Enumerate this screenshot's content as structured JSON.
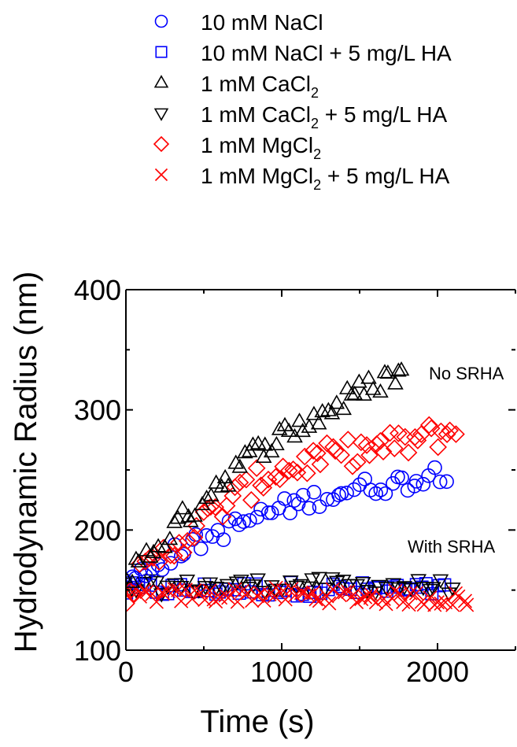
{
  "chart_data": {
    "type": "scatter",
    "title": "",
    "xlabel": "Time (s)",
    "ylabel": "Hydrodynamic Radius (nm)",
    "xlim": [
      0,
      2500
    ],
    "ylim": [
      100,
      400
    ],
    "xticks": [
      0,
      1000,
      2000
    ],
    "yticks": [
      100,
      200,
      300,
      400
    ],
    "grid": false,
    "legend_position": "top",
    "annotations": [
      "No SRHA",
      "With SRHA"
    ],
    "series": [
      {
        "name": "10 mM NaCl",
        "legend_main": "10 mM NaCl",
        "legend_sub": "",
        "legend_tail": "",
        "marker": "circle",
        "color": "#0000ff",
        "trend": {
          "x": [
            0,
            300,
            600,
            900,
            1200,
            1500,
            1800,
            2000
          ],
          "y": [
            155,
            180,
            198,
            214,
            226,
            235,
            240,
            248
          ]
        },
        "x_range": [
          0,
          2050
        ],
        "count": 60,
        "noise": 8
      },
      {
        "name": "10 mM NaCl + 5 mg/L HA",
        "legend_main": "10 mM NaCl + 5 mg/L HA",
        "legend_sub": "",
        "legend_tail": "",
        "marker": "square",
        "color": "#0000ff",
        "trend": {
          "x": [
            0,
            1000,
            2050
          ],
          "y": [
            150,
            151,
            150
          ]
        },
        "x_range": [
          0,
          2050
        ],
        "count": 55,
        "noise": 6
      },
      {
        "name": "1 mM CaCl2",
        "legend_main": "1 mM CaCl",
        "legend_sub": "2",
        "legend_tail": "",
        "marker": "triangle-up",
        "color": "#000000",
        "trend": {
          "x": [
            0,
            300,
            600,
            900,
            1200,
            1500,
            1700,
            1780
          ],
          "y": [
            160,
            200,
            240,
            272,
            292,
            315,
            328,
            332
          ]
        },
        "x_range": [
          0,
          1780
        ],
        "count": 60,
        "noise": 10
      },
      {
        "name": "1 mM CaCl2 + 5 mg/L HA",
        "legend_main": "1 mM CaCl",
        "legend_sub": "2",
        "legend_tail": " + 5 mg/L HA",
        "marker": "triangle-down",
        "color": "#000000",
        "trend": {
          "x": [
            0,
            1000,
            2100
          ],
          "y": [
            152,
            155,
            153
          ]
        },
        "x_range": [
          0,
          2100
        ],
        "count": 55,
        "noise": 6
      },
      {
        "name": "1 mM MgCl2",
        "legend_main": "1 mM MgCl",
        "legend_sub": "2",
        "legend_tail": "",
        "marker": "diamond",
        "color": "#ff0000",
        "trend": {
          "x": [
            0,
            300,
            600,
            900,
            1200,
            1500,
            1800,
            2100
          ],
          "y": [
            150,
            185,
            218,
            245,
            258,
            266,
            272,
            283
          ]
        },
        "x_range": [
          0,
          2120
        ],
        "count": 70,
        "noise": 12
      },
      {
        "name": "1 mM MgCl2 + 5 mg/L HA",
        "legend_main": "1 mM MgCl",
        "legend_sub": "2",
        "legend_tail": " + 5 mg/L HA",
        "marker": "x",
        "color": "#ff0000",
        "trend": {
          "x": [
            0,
            1000,
            2200
          ],
          "y": [
            145,
            146,
            142
          ]
        },
        "x_range": [
          0,
          2200
        ],
        "count": 80,
        "noise": 6
      }
    ]
  }
}
